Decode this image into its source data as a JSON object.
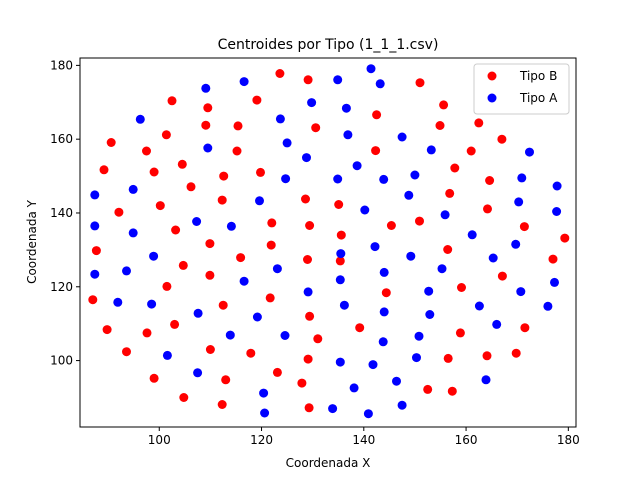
{
  "chart_data": {
    "type": "scatter",
    "title": "Centroides por Tipo (1_1_1.csv)",
    "xlabel": "Coordenada X",
    "ylabel": "Coordenada Y",
    "xlim": [
      84.5,
      181.5
    ],
    "ylim": [
      82,
      182
    ],
    "xticks": [
      100,
      120,
      140,
      160,
      180
    ],
    "yticks": [
      100,
      120,
      140,
      160,
      180
    ],
    "grid": false,
    "legend_position": "top-right",
    "series": [
      {
        "name": "Tipo B",
        "color": "#ff0000",
        "points": [
          [
            123.6,
            177.8
          ],
          [
            129.1,
            176.1
          ],
          [
            151.0,
            175.3
          ],
          [
            102.5,
            170.4
          ],
          [
            119.1,
            170.6
          ],
          [
            155.6,
            169.3
          ],
          [
            109.5,
            168.5
          ],
          [
            142.5,
            166.6
          ],
          [
            162.5,
            164.4
          ],
          [
            109.1,
            163.8
          ],
          [
            115.4,
            163.6
          ],
          [
            130.6,
            163.1
          ],
          [
            154.9,
            163.7
          ],
          [
            90.6,
            159.1
          ],
          [
            101.4,
            161.2
          ],
          [
            167.0,
            160.0
          ],
          [
            97.5,
            156.8
          ],
          [
            115.2,
            156.8
          ],
          [
            142.3,
            156.9
          ],
          [
            161.0,
            156.8
          ],
          [
            104.5,
            153.2
          ],
          [
            89.2,
            151.7
          ],
          [
            99.0,
            151.1
          ],
          [
            112.6,
            150.0
          ],
          [
            157.8,
            152.2
          ],
          [
            119.8,
            151.0
          ],
          [
            106.2,
            147.1
          ],
          [
            164.6,
            148.8
          ],
          [
            156.8,
            145.3
          ],
          [
            128.6,
            143.8
          ],
          [
            135.1,
            142.3
          ],
          [
            100.2,
            142.0
          ],
          [
            112.3,
            143.5
          ],
          [
            92.1,
            140.2
          ],
          [
            164.2,
            141.1
          ],
          [
            122.0,
            137.3
          ],
          [
            129.4,
            136.6
          ],
          [
            145.4,
            136.6
          ],
          [
            150.9,
            137.8
          ],
          [
            171.4,
            136.3
          ],
          [
            103.2,
            135.4
          ],
          [
            109.9,
            131.7
          ],
          [
            121.9,
            131.3
          ],
          [
            135.6,
            134.0
          ],
          [
            87.7,
            129.8
          ],
          [
            156.4,
            130.1
          ],
          [
            179.3,
            133.2
          ],
          [
            115.9,
            127.9
          ],
          [
            129.0,
            127.4
          ],
          [
            135.4,
            127.0
          ],
          [
            104.7,
            125.8
          ],
          [
            109.9,
            123.1
          ],
          [
            167.1,
            122.9
          ],
          [
            177.0,
            127.5
          ],
          [
            101.5,
            120.1
          ],
          [
            159.1,
            119.8
          ],
          [
            144.4,
            118.4
          ],
          [
            121.7,
            117.0
          ],
          [
            87.0,
            116.5
          ],
          [
            112.5,
            115.0
          ],
          [
            129.4,
            112.0
          ],
          [
            103.0,
            109.8
          ],
          [
            171.5,
            108.9
          ],
          [
            89.8,
            108.4
          ],
          [
            97.6,
            107.5
          ],
          [
            131.0,
            105.9
          ],
          [
            139.2,
            108.9
          ],
          [
            158.9,
            107.5
          ],
          [
            110.0,
            103.0
          ],
          [
            93.6,
            102.4
          ],
          [
            117.9,
            102.0
          ],
          [
            156.5,
            100.6
          ],
          [
            164.1,
            101.3
          ],
          [
            169.8,
            102.0
          ],
          [
            129.1,
            100.4
          ],
          [
            123.1,
            96.8
          ],
          [
            99.0,
            95.2
          ],
          [
            113.0,
            94.8
          ],
          [
            127.9,
            93.9
          ],
          [
            152.5,
            92.2
          ],
          [
            157.3,
            91.7
          ],
          [
            104.8,
            90.0
          ],
          [
            112.3,
            88.1
          ],
          [
            129.3,
            87.2
          ]
        ]
      },
      {
        "name": "Tipo A",
        "color": "#0000ff",
        "points": [
          [
            141.4,
            179.1
          ],
          [
            116.6,
            175.6
          ],
          [
            134.9,
            176.1
          ],
          [
            109.1,
            173.8
          ],
          [
            143.2,
            175.0
          ],
          [
            129.8,
            169.9
          ],
          [
            136.6,
            168.4
          ],
          [
            96.3,
            165.4
          ],
          [
            123.7,
            165.5
          ],
          [
            136.9,
            161.2
          ],
          [
            147.5,
            160.6
          ],
          [
            125.0,
            159.0
          ],
          [
            109.5,
            157.6
          ],
          [
            153.2,
            157.1
          ],
          [
            172.4,
            156.5
          ],
          [
            128.8,
            155.0
          ],
          [
            138.7,
            152.8
          ],
          [
            134.9,
            149.2
          ],
          [
            143.9,
            149.1
          ],
          [
            124.7,
            149.3
          ],
          [
            170.9,
            149.5
          ],
          [
            150.0,
            150.3
          ],
          [
            94.9,
            146.4
          ],
          [
            177.8,
            147.3
          ],
          [
            87.4,
            144.9
          ],
          [
            119.6,
            143.3
          ],
          [
            148.8,
            144.8
          ],
          [
            170.3,
            143.0
          ],
          [
            140.2,
            140.8
          ],
          [
            155.9,
            139.5
          ],
          [
            177.7,
            140.4
          ],
          [
            87.4,
            136.5
          ],
          [
            107.3,
            137.7
          ],
          [
            114.1,
            136.4
          ],
          [
            94.9,
            134.6
          ],
          [
            161.2,
            134.1
          ],
          [
            142.2,
            130.9
          ],
          [
            169.7,
            131.5
          ],
          [
            87.4,
            123.4
          ],
          [
            98.9,
            128.3
          ],
          [
            135.5,
            129.0
          ],
          [
            149.2,
            128.3
          ],
          [
            165.3,
            127.8
          ],
          [
            93.6,
            124.3
          ],
          [
            123.1,
            124.9
          ],
          [
            144.0,
            123.9
          ],
          [
            155.3,
            124.9
          ],
          [
            116.6,
            121.5
          ],
          [
            135.4,
            121.9
          ],
          [
            177.3,
            121.2
          ],
          [
            152.7,
            118.8
          ],
          [
            170.7,
            118.7
          ],
          [
            129.1,
            118.6
          ],
          [
            91.9,
            115.8
          ],
          [
            98.5,
            115.3
          ],
          [
            136.2,
            115.0
          ],
          [
            162.6,
            114.8
          ],
          [
            176.0,
            114.7
          ],
          [
            107.6,
            112.8
          ],
          [
            119.2,
            111.8
          ],
          [
            144.0,
            113.2
          ],
          [
            152.9,
            112.5
          ],
          [
            166.0,
            109.8
          ],
          [
            124.6,
            106.8
          ],
          [
            113.9,
            106.9
          ],
          [
            150.8,
            106.6
          ],
          [
            143.8,
            105.1
          ],
          [
            101.6,
            101.4
          ],
          [
            135.4,
            99.6
          ],
          [
            141.8,
            98.9
          ],
          [
            150.3,
            100.8
          ],
          [
            107.5,
            96.7
          ],
          [
            146.4,
            94.4
          ],
          [
            163.9,
            94.8
          ],
          [
            138.1,
            92.6
          ],
          [
            120.4,
            91.2
          ],
          [
            147.5,
            87.9
          ],
          [
            133.9,
            87.0
          ],
          [
            120.6,
            85.8
          ],
          [
            140.9,
            85.6
          ]
        ]
      }
    ]
  }
}
